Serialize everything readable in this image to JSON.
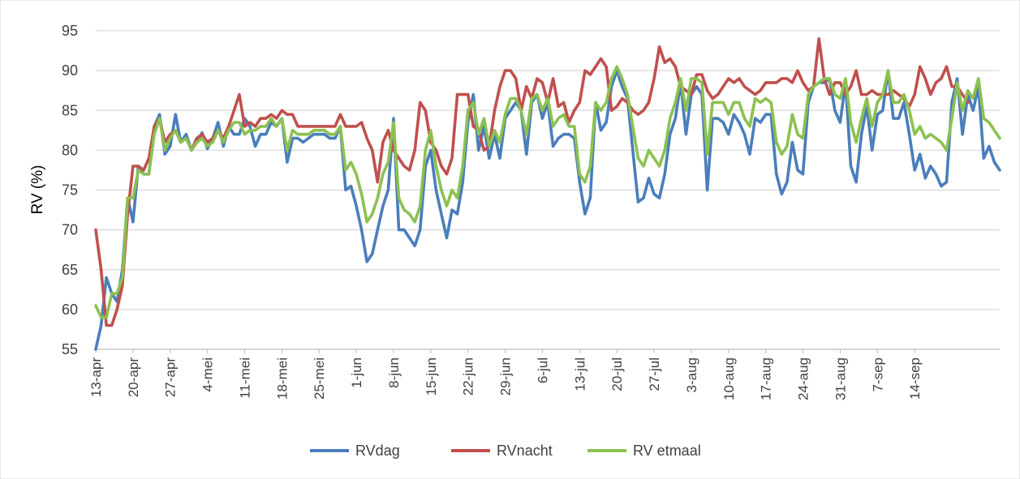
{
  "chart_data": {
    "type": "line",
    "ylabel": "RV (%)",
    "ylim": [
      55,
      95
    ],
    "y_ticks": [
      "55",
      "60",
      "65",
      "70",
      "75",
      "80",
      "85",
      "90",
      "95"
    ],
    "x_start": "13-apr",
    "x_end": "18-sep",
    "x_tick_labels": [
      "13-apr",
      "20-apr",
      "27-apr",
      "4-mei",
      "11-mei",
      "18-mei",
      "25-mei",
      "1-jun",
      "8-jun",
      "15-jun",
      "22-jun",
      "29-jun",
      "6-jul",
      "13-jul",
      "20-jul",
      "27-jul",
      "3-aug",
      "10-aug",
      "17-aug",
      "24-aug",
      "31-aug",
      "7-sep",
      "14-sep"
    ],
    "grid": true,
    "legend_position": "bottom",
    "series": [
      {
        "name": "RVdag",
        "color": "#4a7ebb",
        "values": [
          55,
          58,
          64,
          62,
          61,
          65,
          74,
          71,
          78,
          77,
          77,
          83,
          84.5,
          79.5,
          80.5,
          84.5,
          81,
          82,
          80,
          81,
          82.2,
          80.2,
          81.5,
          83.5,
          80.5,
          83,
          82,
          82,
          84,
          83,
          80.5,
          82,
          82,
          83.5,
          83,
          84,
          78.5,
          81.5,
          81.5,
          81,
          81.5,
          82,
          82,
          82,
          81.5,
          81.5,
          83,
          75,
          75.5,
          73,
          70,
          66,
          67,
          70,
          73,
          75,
          84,
          70,
          70,
          69,
          68,
          70,
          78,
          80,
          75,
          72,
          69,
          72.5,
          72,
          76,
          83.5,
          87,
          80,
          83,
          79,
          82,
          79,
          84,
          85,
          86,
          85,
          79.5,
          86,
          87,
          84,
          86,
          80.5,
          81.5,
          82,
          82,
          81.5,
          76,
          72,
          74,
          86,
          82.5,
          83.5,
          88,
          90,
          88,
          86.5,
          80,
          73.5,
          74,
          76.5,
          74.5,
          74,
          77,
          82,
          84,
          88.5,
          82,
          87,
          88,
          87,
          75,
          84,
          84,
          83.5,
          82,
          84.5,
          83.5,
          82,
          79.5,
          84,
          83.5,
          84.5,
          84.5,
          77,
          74.5,
          76,
          81,
          77.5,
          77,
          86,
          88,
          88.5,
          88.5,
          89,
          85,
          83.5,
          88.5,
          78,
          76,
          82,
          85.5,
          80,
          84.5,
          85,
          90,
          84,
          84,
          86,
          82,
          77.5,
          79.5,
          76.5,
          78,
          77,
          75.5,
          76,
          86,
          89,
          82,
          87,
          85,
          88,
          79,
          80.5,
          78.5,
          77.5
        ]
      },
      {
        "name": "RVnacht",
        "color": "#c0504d",
        "values": [
          70,
          65,
          58,
          58,
          60,
          63,
          72,
          78,
          78,
          77.5,
          79,
          83,
          84,
          81,
          82,
          82.5,
          81,
          81.5,
          80,
          81.5,
          82,
          81,
          81.5,
          82.5,
          81.5,
          83,
          85,
          87,
          83,
          83.5,
          83,
          84,
          84,
          84.5,
          84,
          85,
          84.5,
          84.5,
          83,
          83,
          83,
          83,
          83,
          83,
          83,
          83,
          84.5,
          83,
          83,
          83,
          83.5,
          81.5,
          80,
          76,
          81,
          82.5,
          80,
          79,
          78,
          77.5,
          80,
          86,
          85,
          81,
          80,
          78,
          77,
          79,
          87,
          87,
          87,
          83,
          82.5,
          80,
          80.5,
          85,
          88,
          90,
          90,
          89,
          85,
          88,
          86.5,
          89,
          88.5,
          86,
          89,
          85.5,
          86,
          83.5,
          85,
          86,
          90,
          89.5,
          90.5,
          91.5,
          90.5,
          85,
          85.5,
          86.5,
          86,
          85,
          84.5,
          85,
          86,
          89,
          93,
          91,
          91.5,
          90.5,
          88,
          87.5,
          87,
          89.5,
          89.5,
          87.5,
          86.5,
          87,
          88,
          89,
          88.5,
          89,
          88,
          87.5,
          87,
          87.5,
          88.5,
          88.5,
          88.5,
          89,
          89,
          88.5,
          90,
          88.5,
          87.5,
          88,
          94,
          89,
          87,
          88.5,
          88.5,
          87,
          88,
          90,
          87,
          87,
          87.5,
          87,
          87,
          87,
          87.5,
          87,
          86.5,
          85.5,
          87,
          90.5,
          89,
          87,
          88.5,
          89,
          90.5,
          88,
          88,
          87,
          86
        ]
      },
      {
        "name": "RV etmaal",
        "color": "#8cc151",
        "values": [
          60.5,
          59,
          59,
          62,
          62,
          64,
          74,
          74,
          77.5,
          77,
          77,
          82,
          84,
          80,
          81.5,
          82.5,
          81,
          81.5,
          80,
          81,
          81.5,
          80.5,
          81,
          82.5,
          81,
          82.5,
          83.5,
          83.5,
          82,
          82.5,
          82.5,
          83,
          83,
          84,
          83,
          84,
          80,
          82.5,
          82,
          82,
          82,
          82.5,
          82.5,
          82.5,
          82,
          82,
          83,
          77.5,
          78.5,
          77,
          74.5,
          71,
          72,
          74,
          77,
          78.5,
          83.5,
          74,
          72.5,
          72,
          71,
          73,
          80,
          82.5,
          78,
          75,
          73,
          75,
          74,
          78,
          85,
          86,
          82,
          84,
          80.5,
          82.5,
          81,
          84.5,
          86.5,
          86.5,
          85,
          82,
          86.5,
          87,
          85,
          86.5,
          83,
          84,
          84.5,
          83,
          83,
          77,
          76,
          78,
          86,
          85,
          86,
          89,
          90.5,
          89,
          87,
          83,
          79,
          78,
          80,
          79,
          78,
          80,
          84,
          86,
          89,
          85,
          89,
          89,
          88.5,
          79.5,
          86,
          86,
          86,
          84.5,
          86,
          86,
          84,
          83,
          86.5,
          86,
          86.5,
          86,
          81,
          79.5,
          80.5,
          84.5,
          82,
          81.5,
          87,
          88,
          88.5,
          89,
          89,
          87,
          86.5,
          89,
          83.5,
          81,
          84,
          86.5,
          83,
          86,
          87,
          90,
          86,
          86,
          87,
          85,
          82,
          83,
          81.5,
          82,
          81.5,
          81,
          80,
          84,
          88.5,
          85,
          87.5,
          86.5,
          89,
          84,
          83.5,
          82.5,
          81.5
        ]
      }
    ]
  }
}
